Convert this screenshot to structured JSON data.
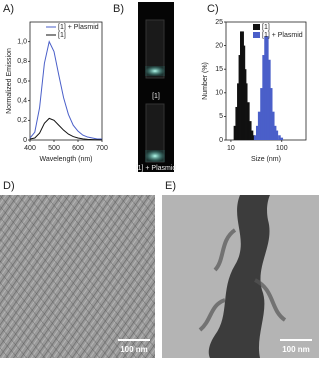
{
  "chart_data": [
    {
      "type": "line",
      "label": "A)",
      "x_label": "Wavelength (nm)",
      "y_label": "Normalized Emission",
      "x": [
        400,
        420,
        440,
        460,
        480,
        500,
        520,
        540,
        560,
        580,
        600,
        620,
        640,
        660,
        680,
        700
      ],
      "series": [
        {
          "name": "[1] + Plasmid",
          "color": "#4a5fc9",
          "values": [
            0.02,
            0.08,
            0.33,
            0.78,
            1.0,
            0.9,
            0.66,
            0.43,
            0.26,
            0.15,
            0.09,
            0.05,
            0.03,
            0.02,
            0.01,
            0.01
          ]
        },
        {
          "name": "[1]",
          "color": "#111111",
          "values": [
            0.01,
            0.02,
            0.07,
            0.17,
            0.22,
            0.2,
            0.15,
            0.1,
            0.06,
            0.035,
            0.02,
            0.012,
            0.007,
            0.004,
            0.002,
            0.001
          ]
        }
      ],
      "xlim": [
        400,
        700
      ],
      "xticks": [
        400,
        500,
        600,
        700
      ],
      "ylim": [
        0,
        1.2
      ],
      "yticks": [
        0,
        {
          "value": 0.2,
          "label": "0,2"
        },
        {
          "value": 0.4,
          "label": "0,4"
        },
        {
          "value": 0.6,
          "label": "0,6"
        },
        {
          "value": 0.8,
          "label": "0,8"
        },
        {
          "value": 1.0,
          "label": "1,0"
        }
      ],
      "legend": "upper right"
    },
    {
      "type": "histogram",
      "label": "C)",
      "x_label": "Size (nm)",
      "y_label": "Number (%)",
      "xscale": "log",
      "series": [
        {
          "name": "[1]",
          "color": "#111111",
          "x": [
            12,
            13,
            14,
            15,
            16,
            17,
            18,
            19,
            20,
            22,
            24,
            26,
            28
          ],
          "values": [
            3,
            7,
            12,
            18,
            23,
            23,
            20,
            15,
            12,
            8,
            4,
            2,
            1
          ]
        },
        {
          "name": "[1] + Plasmid",
          "color": "#4a5fc9",
          "x": [
            30,
            33,
            36,
            40,
            44,
            48,
            52,
            57,
            62,
            68,
            74,
            80,
            90,
            100
          ],
          "values": [
            1,
            3,
            6,
            11,
            18,
            22,
            22,
            17,
            11,
            6,
            3,
            2,
            1,
            0.5
          ]
        }
      ],
      "xlim": [
        8,
        300
      ],
      "xticks": [
        10,
        100
      ],
      "ylim": [
        0,
        25
      ],
      "yticks": [
        0,
        5,
        10,
        15,
        20,
        25
      ],
      "legend": "upper right"
    }
  ],
  "panels": {
    "B": {
      "label": "B)",
      "captions": [
        "[1]",
        "[1] + Plasmid"
      ]
    },
    "D": {
      "label": "D)",
      "scale_bar": "100 nm"
    },
    "E": {
      "label": "E)",
      "scale_bar": "100 nm"
    }
  }
}
